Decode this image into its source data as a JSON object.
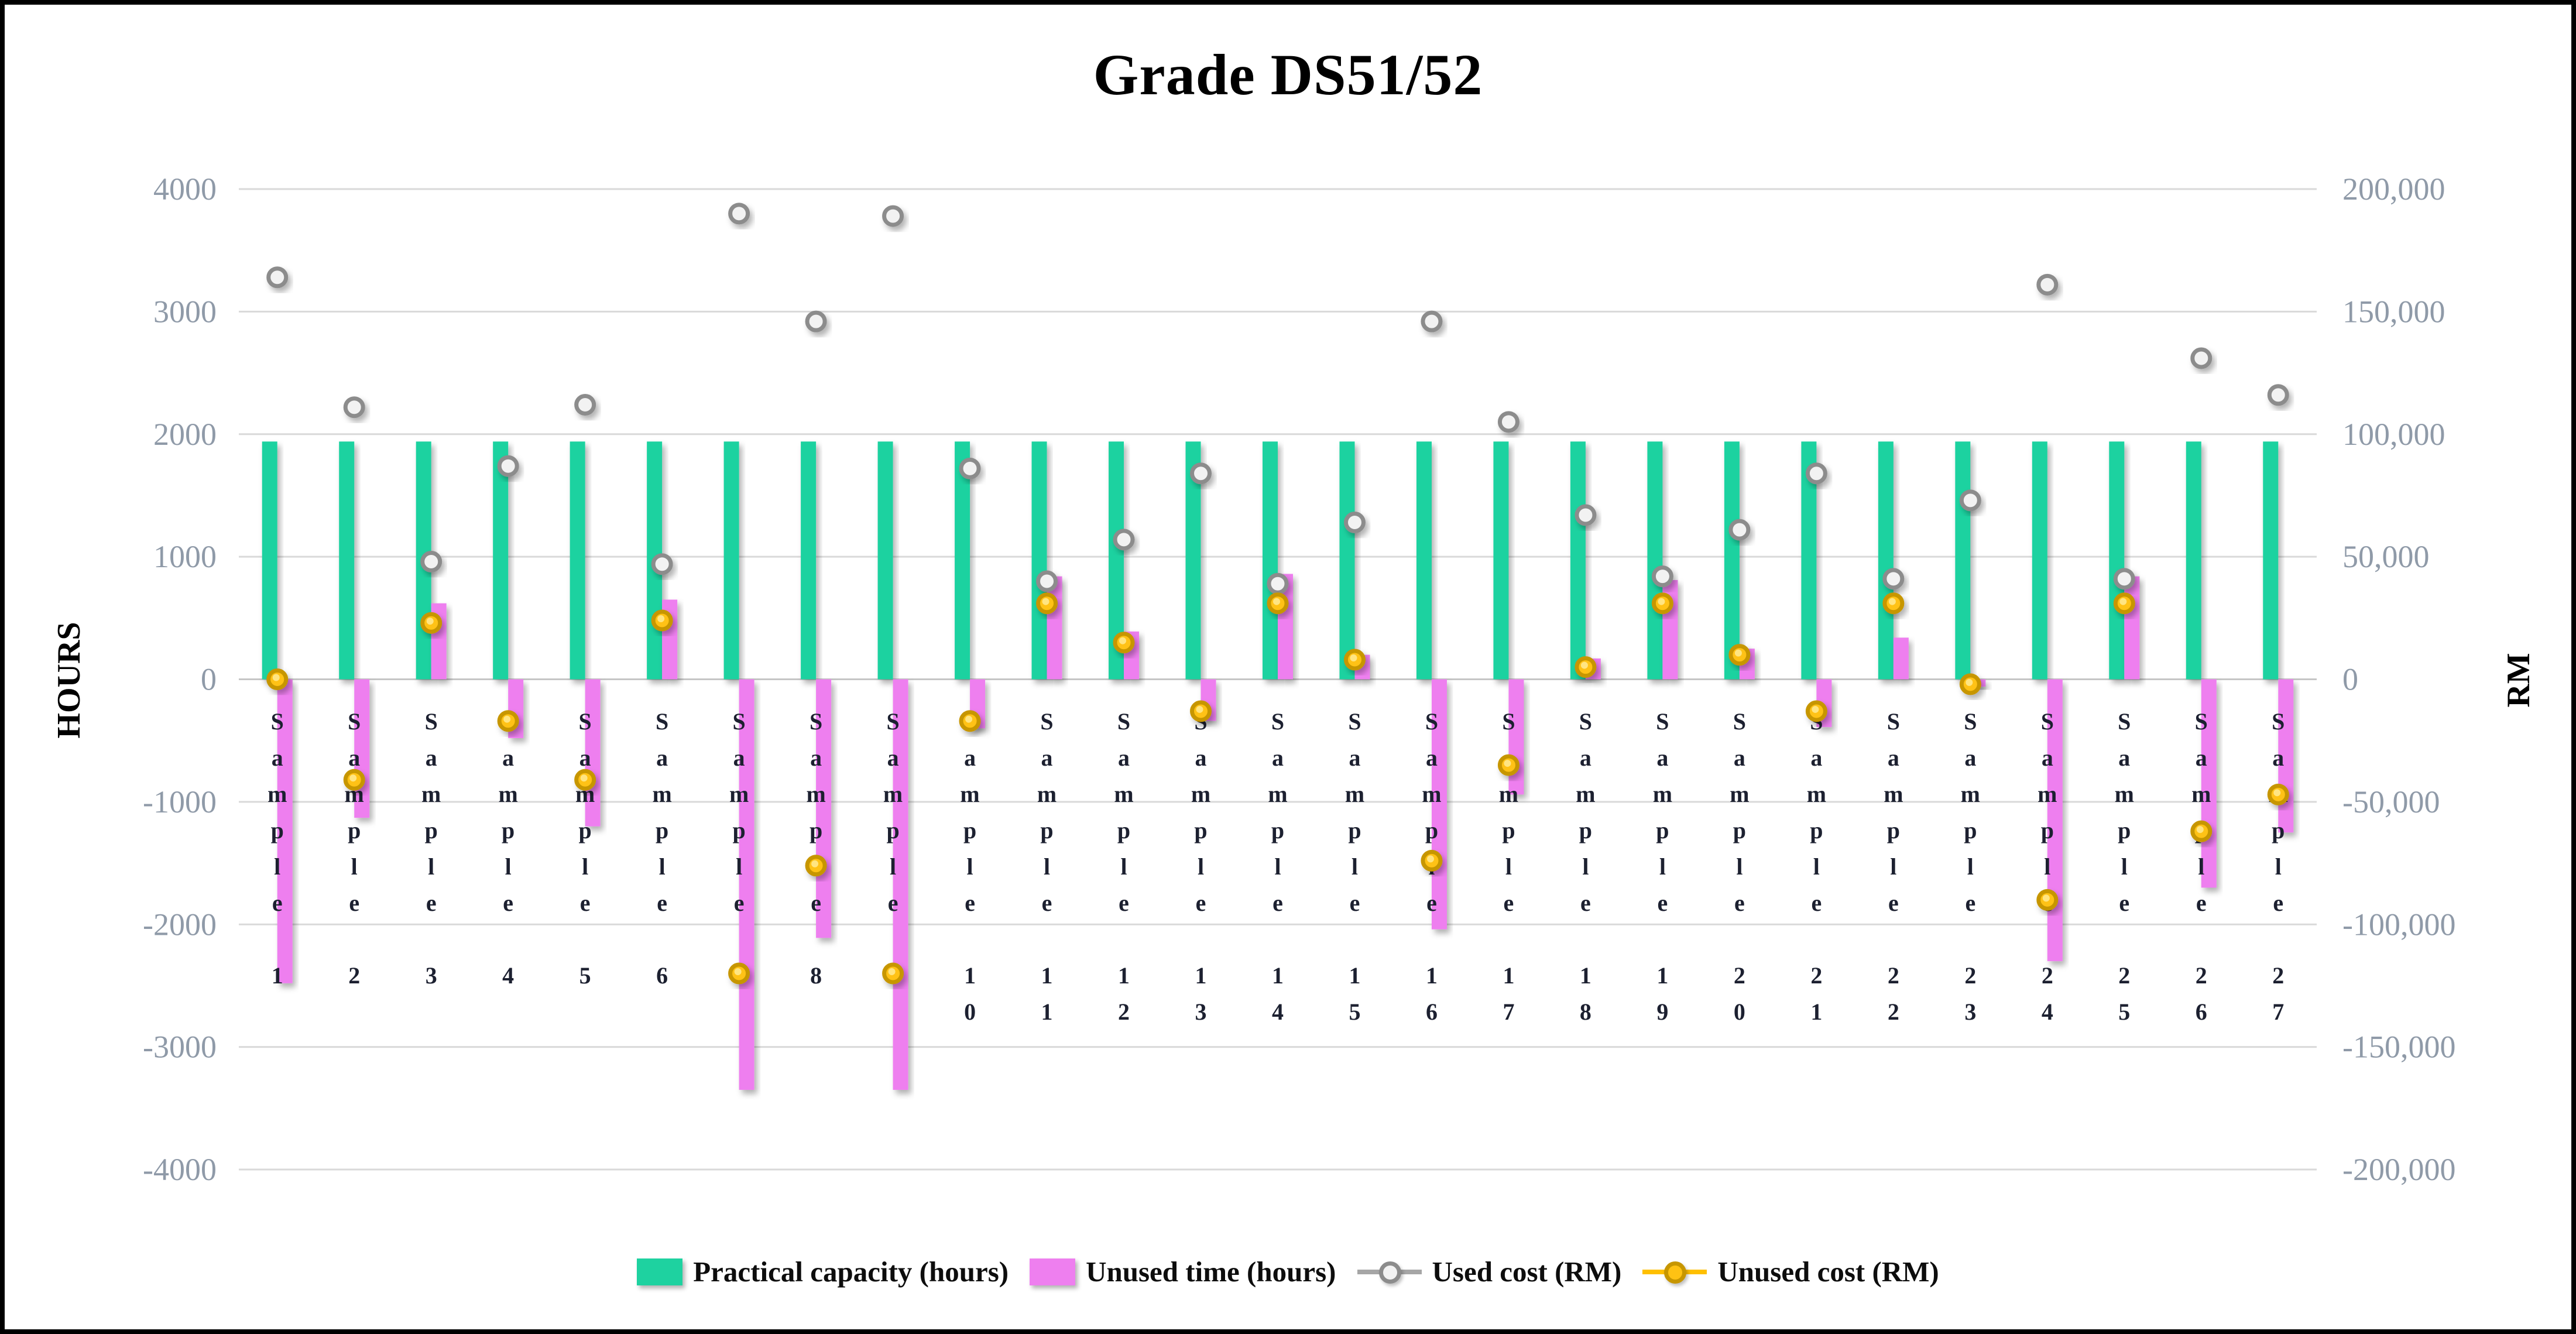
{
  "chart_data": {
    "type": "bar",
    "title": "Grade DS51/52",
    "grid": true,
    "legend_position": "bottom",
    "categories": [
      "Sample 1",
      "Sample 2",
      "Sample 3",
      "Sample 4",
      "Sample 5",
      "Sample 6",
      "Sample 7",
      "Sample 8",
      "Sample 9",
      "Sample 10",
      "Sample 11",
      "Sample 12",
      "Sample 13",
      "Sample 14",
      "Sample 15",
      "Sample 16",
      "Sample 17",
      "Sample 18",
      "Sample 19",
      "Sample 20",
      "Sample 21",
      "Sample 22",
      "Sample 23",
      "Sample 24",
      "Sample 25",
      "Sample 26",
      "Sample 27"
    ],
    "left_axis": {
      "title": "HOURS",
      "min": -4000,
      "max": 4000,
      "tick_step": 1000,
      "ticks": [
        "4000",
        "3000",
        "2000",
        "1000",
        "0",
        "-1000",
        "-2000",
        "-3000",
        "-4000"
      ]
    },
    "right_axis": {
      "title": "RM",
      "min": -200000,
      "max": 200000,
      "tick_step": 50000,
      "ticks": [
        "200,000",
        "150,000",
        "100,000",
        "50,000",
        "0",
        "-50,000",
        "-100,000",
        "-150,000",
        "-200,000"
      ]
    },
    "series": [
      {
        "name": "Practical capacity (hours)",
        "type": "bar",
        "axis": "hours",
        "color": "#1ED2A0",
        "values": [
          1940,
          1940,
          1940,
          1940,
          1940,
          1940,
          1940,
          1940,
          1940,
          1940,
          1940,
          1940,
          1940,
          1940,
          1940,
          1940,
          1940,
          1940,
          1940,
          1940,
          1940,
          1940,
          1940,
          1940,
          1940,
          1940,
          1940
        ]
      },
      {
        "name": "Unused time (hours)",
        "type": "bar",
        "axis": "hours",
        "color": "#EE7FEF",
        "values": [
          -2480,
          -1130,
          620,
          -480,
          -1200,
          650,
          -3350,
          -2110,
          -3350,
          -400,
          840,
          390,
          -340,
          860,
          200,
          -2040,
          -940,
          170,
          810,
          250,
          -390,
          340,
          -60,
          -2300,
          840,
          -1700,
          -1250
        ]
      },
      {
        "name": "Used cost (RM)",
        "type": "line-markers",
        "axis": "rm",
        "line_color": "#A6A6A6",
        "marker_stroke": "#8C8C8C",
        "marker_fill": "#F2F2F2",
        "values": [
          164000,
          111000,
          48000,
          87000,
          112000,
          47000,
          190000,
          146000,
          189000,
          86000,
          40000,
          57000,
          84000,
          39000,
          64000,
          146000,
          105000,
          67000,
          42000,
          61000,
          84000,
          41000,
          73000,
          161000,
          41000,
          131000,
          116000
        ]
      },
      {
        "name": "Unused cost (RM)",
        "type": "line-markers",
        "axis": "rm",
        "line_color": "#FFC000",
        "marker_stroke": "#C79600",
        "marker_fill": "#FFC213",
        "marker_highlight": "#FFE98E",
        "values": [
          0,
          -41000,
          23000,
          -17000,
          -41000,
          24000,
          -120000,
          -76000,
          -120000,
          -17000,
          31000,
          15000,
          -13000,
          31000,
          8000,
          -74000,
          -35000,
          5000,
          31000,
          10000,
          -13000,
          31000,
          -2000,
          -90000,
          31000,
          -62000,
          -47000
        ]
      }
    ],
    "style": {
      "grid_color": "#D9D9D9",
      "zero_line_color": "#C6C6C6",
      "tick_label_color": "#8F9AA8",
      "category_label_color": "#1C2030",
      "background": "#FFFFFF",
      "border_color": "#000000"
    }
  }
}
